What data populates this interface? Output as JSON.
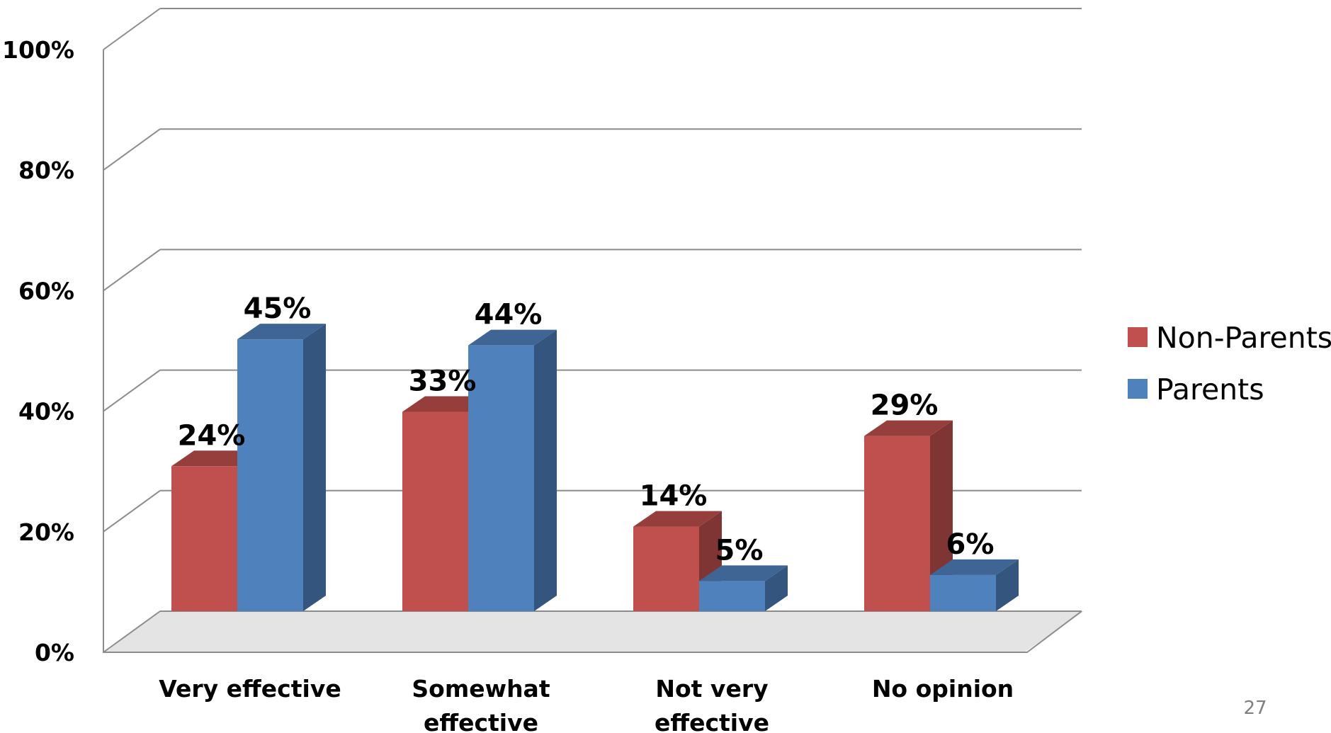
{
  "chart_data": {
    "type": "bar",
    "title": "",
    "xlabel": "",
    "ylabel": "",
    "ylim": [
      0,
      100
    ],
    "yticks": [
      "0%",
      "20%",
      "40%",
      "60%",
      "80%",
      "100%"
    ],
    "categories": [
      [
        "Very effective"
      ],
      [
        "Somewhat",
        "effective"
      ],
      [
        "Not very",
        "effective"
      ],
      [
        "No opinion"
      ]
    ],
    "series": [
      {
        "name": "Non-Parents",
        "color": "#c0504d",
        "values": [
          24,
          33,
          14,
          29
        ],
        "labels": [
          "24%",
          "33%",
          "14%",
          "29%"
        ]
      },
      {
        "name": "Parents",
        "color": "#4f81bd",
        "values": [
          45,
          44,
          5,
          6
        ],
        "labels": [
          "45%",
          "44%",
          "5%",
          "6%"
        ]
      }
    ],
    "grid": true,
    "legend": "right",
    "style": "3d-clustered-column"
  },
  "page_number": "27"
}
